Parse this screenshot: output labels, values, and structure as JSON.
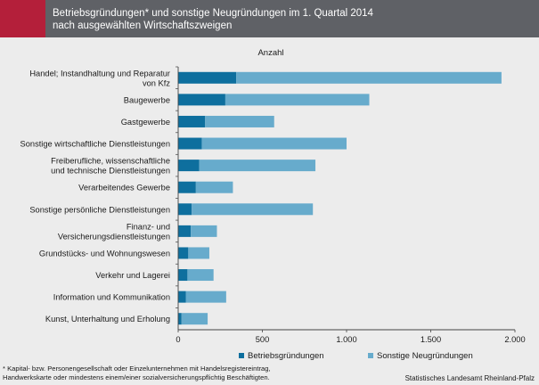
{
  "header": {
    "title": "Betriebsgründungen* und sonstige Neugründungen im 1. Quartal 2014\n  nach ausgewählten Wirtschaftszweigen"
  },
  "chart_data": {
    "type": "bar",
    "orientation": "horizontal",
    "stacked": true,
    "unit_label": "Anzahl",
    "categories": [
      "Handel; Instandhaltung und Reparatur\nvon Kfz",
      "Baugewerbe",
      "Gastgewerbe",
      "Sonstige wirtschaftliche Dienstleistungen",
      "Freiberufliche, wissenschaftliche\nund technische Dienstleistungen",
      "Verarbeitendes Gewerbe",
      "Sonstige persönliche Dienstleistungen",
      "Finanz- und\nVersicherungsdienstleistungen",
      "Grundstücks- und Wohnungswesen",
      "Verkehr und Lagerei",
      "Information und Kommunikation",
      "Kunst, Unterhaltung und Erholung"
    ],
    "series": [
      {
        "name": "Betriebsgründungen",
        "color": "#0e6f9e",
        "values": [
          345,
          280,
          160,
          140,
          125,
          105,
          80,
          75,
          60,
          55,
          45,
          20
        ]
      },
      {
        "name": "Sonstige Neugründungen",
        "color": "#67abcc",
        "values": [
          1575,
          855,
          410,
          860,
          690,
          220,
          720,
          155,
          125,
          155,
          240,
          155
        ]
      }
    ],
    "xlim": [
      0,
      2000
    ],
    "xticks": [
      "0",
      "500",
      "1.000",
      "1.500",
      "2.000"
    ],
    "xtick_values": [
      0,
      500,
      1000,
      1500,
      2000
    ],
    "grid": false,
    "legend_position": "bottom"
  },
  "footnote": "* Kapital- bzw. Personengesellschaft oder Einzelunternehmen mit  Handelsregistereintrag,\nHandwerkskarte oder mindestens einem/einer sozialversicherungspflichtig Beschäftigten.",
  "source": "Statistisches Landesamt Rheinland-Pfalz"
}
